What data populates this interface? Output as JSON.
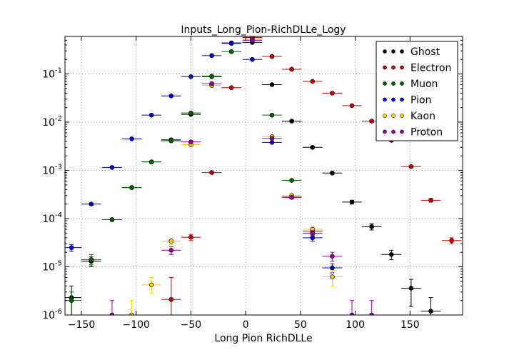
{
  "chart_data": {
    "type": "scatter",
    "title": "Inputs_Long_Pion-RichDLLe_Logy",
    "xlabel": "Long Pion RichDLLe",
    "ylabel": "",
    "xlim": [
      -165,
      198
    ],
    "ylim": [
      1e-06,
      0.6
    ],
    "y_scale": "log",
    "grid": true,
    "legend_position": "top-right",
    "x_ticks": [
      -150,
      -100,
      -50,
      0,
      50,
      100,
      150
    ],
    "x_tick_labels": [
      "−150",
      "−100",
      "−50",
      "0",
      "50",
      "100",
      "150"
    ],
    "y_ticks": [
      1e-06,
      1e-05,
      0.0001,
      0.001,
      0.01,
      0.1
    ],
    "y_tick_labels": [
      {
        "base": "10",
        "exp": "-6"
      },
      {
        "base": "10",
        "exp": "-5"
      },
      {
        "base": "10",
        "exp": "-4"
      },
      {
        "base": "10",
        "exp": "-3"
      },
      {
        "base": "10",
        "exp": "-2"
      },
      {
        "base": "10",
        "exp": "-1"
      }
    ],
    "series": [
      {
        "name": "Ghost",
        "color": "#000000",
        "points": [
          {
            "x": -159,
            "y": 2.3e-06,
            "xerr": 9,
            "ylo": 1e-06,
            "yhi": 4e-06
          },
          {
            "x": -141,
            "y": 1.3e-05,
            "xerr": 9,
            "ylo": 1e-05,
            "yhi": 1.6e-05
          },
          {
            "x": -122,
            "y": 9.5e-05,
            "xerr": 9,
            "ylo": 9e-05,
            "yhi": 0.0001
          },
          {
            "x": -104,
            "y": 0.00044,
            "xerr": 9,
            "ylo": 0.00042,
            "yhi": 0.00046
          },
          {
            "x": -86,
            "y": 0.0015,
            "xerr": 9,
            "ylo": 0.00145,
            "yhi": 0.00155
          },
          {
            "x": -68,
            "y": 0.0043,
            "xerr": 9,
            "ylo": 0.0042,
            "yhi": 0.0044
          },
          {
            "x": -50,
            "y": 0.0145,
            "xerr": 9,
            "ylo": 0.014,
            "yhi": 0.015
          },
          {
            "x": -31,
            "y": 0.088,
            "xerr": 9,
            "ylo": 0.086,
            "yhi": 0.09
          },
          {
            "x": -13,
            "y": 0.44,
            "xerr": 9,
            "ylo": 0.43,
            "yhi": 0.45
          },
          {
            "x": 6,
            "y": 0.45,
            "xerr": 9,
            "ylo": 0.44,
            "yhi": 0.46
          },
          {
            "x": 24,
            "y": 0.06,
            "xerr": 9,
            "ylo": 0.059,
            "yhi": 0.061
          },
          {
            "x": 42,
            "y": 0.0105,
            "xerr": 9,
            "ylo": 0.01,
            "yhi": 0.011
          },
          {
            "x": 61,
            "y": 0.003,
            "xerr": 9,
            "ylo": 0.0029,
            "yhi": 0.0031
          },
          {
            "x": 79,
            "y": 0.00088,
            "xerr": 9,
            "ylo": 0.00084,
            "yhi": 0.00092
          },
          {
            "x": 97,
            "y": 0.00022,
            "xerr": 9,
            "ylo": 0.0002,
            "yhi": 0.00024
          },
          {
            "x": 115,
            "y": 6.8e-05,
            "xerr": 9,
            "ylo": 5.8e-05,
            "yhi": 7.8e-05
          },
          {
            "x": 133,
            "y": 1.8e-05,
            "xerr": 9,
            "ylo": 1.4e-05,
            "yhi": 2.2e-05
          },
          {
            "x": 151,
            "y": 3.6e-06,
            "xerr": 9,
            "ylo": 1.5e-06,
            "yhi": 5.5e-06
          },
          {
            "x": 169,
            "y": 1.2e-06,
            "xerr": 9,
            "ylo": 1e-06,
            "yhi": 2.3e-06
          }
        ]
      },
      {
        "name": "Electron",
        "color": "#cc0000",
        "points": [
          {
            "x": -68,
            "y": 2.1e-06,
            "xerr": 9,
            "ylo": 1e-06,
            "yhi": 6e-06
          },
          {
            "x": -50,
            "y": 4.1e-05,
            "xerr": 9,
            "ylo": 3.5e-05,
            "yhi": 4.7e-05
          },
          {
            "x": -31,
            "y": 0.0009,
            "xerr": 9,
            "ylo": 0.00087,
            "yhi": 0.00093
          },
          {
            "x": -13,
            "y": 0.052,
            "xerr": 9,
            "ylo": 0.051,
            "yhi": 0.053
          },
          {
            "x": 6,
            "y": 0.57,
            "xerr": 9,
            "ylo": 0.56,
            "yhi": 0.58
          },
          {
            "x": 24,
            "y": 0.23,
            "xerr": 9,
            "ylo": 0.22,
            "yhi": 0.24
          },
          {
            "x": 42,
            "y": 0.125,
            "xerr": 9,
            "ylo": 0.12,
            "yhi": 0.13
          },
          {
            "x": 61,
            "y": 0.07,
            "xerr": 9,
            "ylo": 0.069,
            "yhi": 0.071
          },
          {
            "x": 79,
            "y": 0.04,
            "xerr": 9,
            "ylo": 0.039,
            "yhi": 0.041
          },
          {
            "x": 97,
            "y": 0.022,
            "xerr": 9,
            "ylo": 0.0215,
            "yhi": 0.0225
          },
          {
            "x": 115,
            "y": 0.0105,
            "xerr": 9,
            "ylo": 0.01,
            "yhi": 0.011
          },
          {
            "x": 133,
            "y": 0.0042,
            "xerr": 9,
            "ylo": 0.0041,
            "yhi": 0.0043
          },
          {
            "x": 151,
            "y": 0.0012,
            "xerr": 9,
            "ylo": 0.00115,
            "yhi": 0.00125
          },
          {
            "x": 169,
            "y": 0.00024,
            "xerr": 9,
            "ylo": 0.00022,
            "yhi": 0.00026
          },
          {
            "x": 188,
            "y": 3.5e-05,
            "xerr": 9,
            "ylo": 3e-05,
            "yhi": 4e-05
          }
        ]
      },
      {
        "name": "Muon",
        "color": "#006600",
        "points": [
          {
            "x": -159,
            "y": 2e-06,
            "xerr": 9,
            "ylo": 1e-06,
            "yhi": 3e-06
          },
          {
            "x": -141,
            "y": 1.4e-05,
            "xerr": 9,
            "ylo": 1.1e-05,
            "yhi": 1.8e-05
          },
          {
            "x": -122,
            "y": 9.5e-05,
            "xerr": 9,
            "ylo": 8.9e-05,
            "yhi": 0.000101
          },
          {
            "x": -104,
            "y": 0.00044,
            "xerr": 9,
            "ylo": 0.00042,
            "yhi": 0.00046
          },
          {
            "x": -86,
            "y": 0.0015,
            "xerr": 9,
            "ylo": 0.00145,
            "yhi": 0.00155
          },
          {
            "x": -68,
            "y": 0.0041,
            "xerr": 9,
            "ylo": 0.004,
            "yhi": 0.0042
          },
          {
            "x": -50,
            "y": 0.0155,
            "xerr": 9,
            "ylo": 0.015,
            "yhi": 0.016
          },
          {
            "x": -31,
            "y": 0.09,
            "xerr": 9,
            "ylo": 0.088,
            "yhi": 0.092
          },
          {
            "x": -13,
            "y": 0.29,
            "xerr": 9,
            "ylo": 0.28,
            "yhi": 0.3
          },
          {
            "x": 24,
            "y": 0.014,
            "xerr": 9,
            "ylo": 0.0135,
            "yhi": 0.0145
          },
          {
            "x": 42,
            "y": 0.00062,
            "xerr": 9,
            "ylo": 0.00059,
            "yhi": 0.00065
          },
          {
            "x": 61,
            "y": 5.5e-05,
            "xerr": 9,
            "ylo": 4.9e-05,
            "yhi": 6.1e-05
          }
        ]
      },
      {
        "name": "Pion",
        "color": "#0000cc",
        "points": [
          {
            "x": -159,
            "y": 2.5e-05,
            "xerr": 9,
            "ylo": 2.1e-05,
            "yhi": 2.9e-05
          },
          {
            "x": -141,
            "y": 0.0002,
            "xerr": 9,
            "ylo": 0.00019,
            "yhi": 0.00021
          },
          {
            "x": -122,
            "y": 0.00115,
            "xerr": 9,
            "ylo": 0.0011,
            "yhi": 0.0012
          },
          {
            "x": -104,
            "y": 0.0045,
            "xerr": 9,
            "ylo": 0.0044,
            "yhi": 0.0046
          },
          {
            "x": -86,
            "y": 0.014,
            "xerr": 9,
            "ylo": 0.0135,
            "yhi": 0.0145
          },
          {
            "x": -68,
            "y": 0.035,
            "xerr": 9,
            "ylo": 0.034,
            "yhi": 0.036
          },
          {
            "x": -50,
            "y": 0.088,
            "xerr": 9,
            "ylo": 0.086,
            "yhi": 0.09
          },
          {
            "x": -31,
            "y": 0.24,
            "xerr": 9,
            "ylo": 0.235,
            "yhi": 0.245
          },
          {
            "x": -13,
            "y": 0.43,
            "xerr": 9,
            "ylo": 0.42,
            "yhi": 0.44
          },
          {
            "x": 6,
            "y": 0.2,
            "xerr": 9,
            "ylo": 0.195,
            "yhi": 0.205
          },
          {
            "x": 24,
            "y": 0.0038,
            "xerr": 9,
            "ylo": 0.0037,
            "yhi": 0.0039
          },
          {
            "x": 42,
            "y": 0.00028,
            "xerr": 9,
            "ylo": 0.00026,
            "yhi": 0.0003
          },
          {
            "x": 61,
            "y": 4e-05,
            "xerr": 9,
            "ylo": 3.4e-05,
            "yhi": 4.6e-05
          },
          {
            "x": 79,
            "y": 9.5e-06,
            "xerr": 9,
            "ylo": 7.5e-06,
            "yhi": 1.15e-05
          }
        ]
      },
      {
        "name": "Kaon",
        "color": "#ffcc00",
        "points": [
          {
            "x": -104,
            "y": 1e-06,
            "xerr": 9,
            "ylo": 1e-06,
            "yhi": 2e-06
          },
          {
            "x": -86,
            "y": 4.2e-06,
            "xerr": 9,
            "ylo": 2.8e-06,
            "yhi": 6e-06
          },
          {
            "x": -68,
            "y": 3.4e-05,
            "xerr": 9,
            "ylo": 2.9e-05,
            "yhi": 3.9e-05
          },
          {
            "x": -50,
            "y": 0.0034,
            "xerr": 9,
            "ylo": 0.0033,
            "yhi": 0.0035
          },
          {
            "x": -31,
            "y": 0.058,
            "xerr": 9,
            "ylo": 0.057,
            "yhi": 0.059
          },
          {
            "x": 6,
            "y": 0.52,
            "xerr": 9,
            "ylo": 0.51,
            "yhi": 0.53
          },
          {
            "x": 24,
            "y": 0.005,
            "xerr": 9,
            "ylo": 0.0049,
            "yhi": 0.0051
          },
          {
            "x": 42,
            "y": 0.0003,
            "xerr": 9,
            "ylo": 0.00028,
            "yhi": 0.00032
          },
          {
            "x": 61,
            "y": 6e-05,
            "xerr": 9,
            "ylo": 5.3e-05,
            "yhi": 6.7e-05
          },
          {
            "x": 79,
            "y": 6.2e-06,
            "xerr": 9,
            "ylo": 4e-06,
            "yhi": 8.4e-06
          }
        ]
      },
      {
        "name": "Proton",
        "color": "#990099",
        "points": [
          {
            "x": -122,
            "y": 1e-06,
            "xerr": 9,
            "ylo": 1e-06,
            "yhi": 2e-06
          },
          {
            "x": -68,
            "y": 2.2e-05,
            "xerr": 9,
            "ylo": 1.8e-05,
            "yhi": 2.6e-05
          },
          {
            "x": -50,
            "y": 0.0039,
            "xerr": 9,
            "ylo": 0.0038,
            "yhi": 0.004
          },
          {
            "x": -31,
            "y": 0.063,
            "xerr": 9,
            "ylo": 0.062,
            "yhi": 0.064
          },
          {
            "x": 6,
            "y": 0.5,
            "xerr": 9,
            "ylo": 0.49,
            "yhi": 0.51
          },
          {
            "x": 24,
            "y": 0.0046,
            "xerr": 9,
            "ylo": 0.0045,
            "yhi": 0.0047
          },
          {
            "x": 42,
            "y": 0.000275,
            "xerr": 9,
            "ylo": 0.000255,
            "yhi": 0.000295
          },
          {
            "x": 61,
            "y": 5e-05,
            "xerr": 9,
            "ylo": 4.4e-05,
            "yhi": 5.6e-05
          },
          {
            "x": 79,
            "y": 1.65e-05,
            "xerr": 9,
            "ylo": 1.3e-05,
            "yhi": 2e-05
          },
          {
            "x": 97,
            "y": 1e-06,
            "xerr": 9,
            "ylo": 1e-06,
            "yhi": 2e-06
          },
          {
            "x": 115,
            "y": 1e-06,
            "xerr": 9,
            "ylo": 1e-06,
            "yhi": 2e-06
          }
        ]
      }
    ]
  }
}
